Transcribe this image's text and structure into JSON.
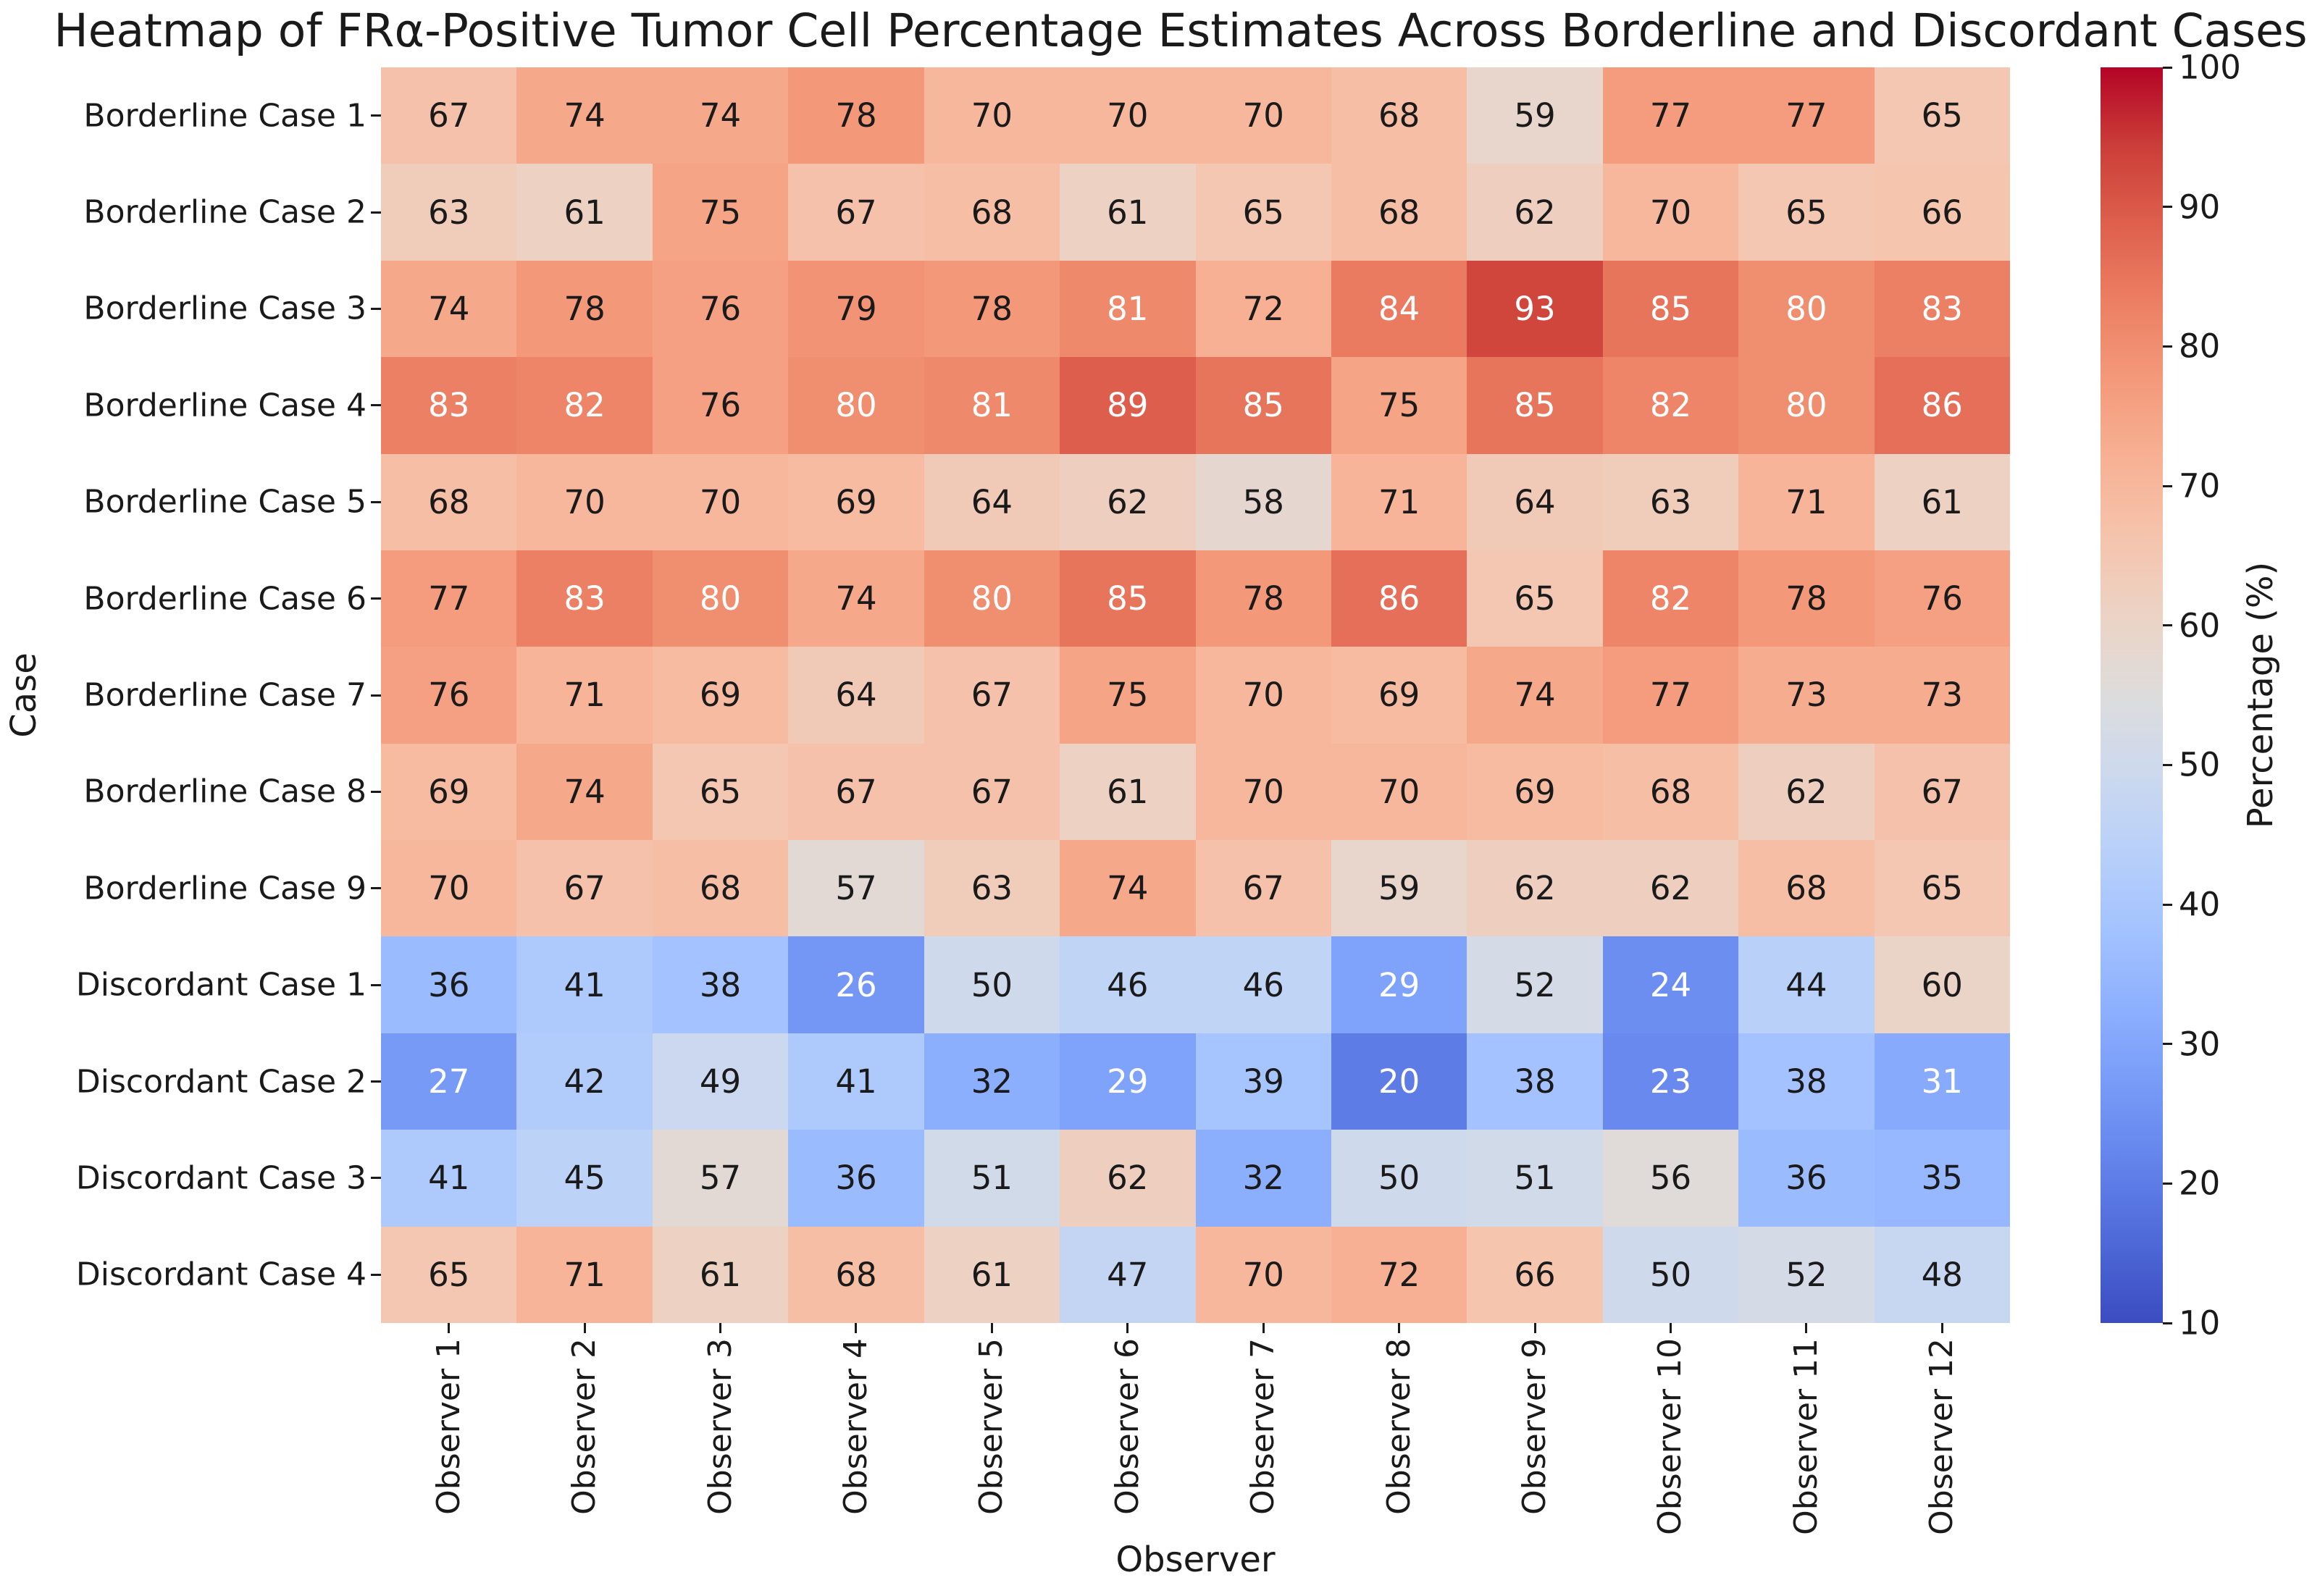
{
  "chart_data": {
    "type": "heatmap",
    "title": "Heatmap of FRα-Positive Tumor Cell Percentage Estimates Across Borderline and Discordant Cases",
    "xlabel": "Observer",
    "ylabel": "Case",
    "rows": [
      "Borderline Case 1",
      "Borderline Case 2",
      "Borderline Case 3",
      "Borderline Case 4",
      "Borderline Case 5",
      "Borderline Case 6",
      "Borderline Case 7",
      "Borderline Case 8",
      "Borderline Case 9",
      "Discordant Case 1",
      "Discordant Case 2",
      "Discordant Case 3",
      "Discordant Case 4"
    ],
    "columns": [
      "Observer 1",
      "Observer 2",
      "Observer 3",
      "Observer 4",
      "Observer 5",
      "Observer 6",
      "Observer 7",
      "Observer 8",
      "Observer 9",
      "Observer 10",
      "Observer 11",
      "Observer 12"
    ],
    "values": [
      [
        67,
        74,
        74,
        78,
        70,
        70,
        70,
        68,
        59,
        77,
        77,
        65
      ],
      [
        63,
        61,
        75,
        67,
        68,
        61,
        65,
        68,
        62,
        70,
        65,
        66
      ],
      [
        74,
        78,
        76,
        79,
        78,
        81,
        72,
        84,
        93,
        85,
        80,
        83
      ],
      [
        83,
        82,
        76,
        80,
        81,
        89,
        85,
        75,
        85,
        82,
        80,
        86
      ],
      [
        68,
        70,
        70,
        69,
        64,
        62,
        58,
        71,
        64,
        63,
        71,
        61
      ],
      [
        77,
        83,
        80,
        74,
        80,
        85,
        78,
        86,
        65,
        82,
        78,
        76
      ],
      [
        76,
        71,
        69,
        64,
        67,
        75,
        70,
        69,
        74,
        77,
        73,
        73
      ],
      [
        69,
        74,
        65,
        67,
        67,
        61,
        70,
        70,
        69,
        68,
        62,
        67
      ],
      [
        70,
        67,
        68,
        57,
        63,
        74,
        67,
        59,
        62,
        62,
        68,
        65
      ],
      [
        36,
        41,
        38,
        26,
        50,
        46,
        46,
        29,
        52,
        24,
        44,
        60
      ],
      [
        27,
        42,
        49,
        41,
        32,
        29,
        39,
        20,
        38,
        23,
        38,
        31
      ],
      [
        41,
        45,
        57,
        36,
        51,
        62,
        32,
        50,
        51,
        56,
        36,
        35
      ],
      [
        65,
        71,
        61,
        68,
        61,
        47,
        70,
        72,
        66,
        50,
        52,
        48
      ]
    ],
    "vmin": 10,
    "vmax": 100,
    "grid": false,
    "colorbar": {
      "label": "Percentage (%)",
      "ticks": [
        100,
        90,
        80,
        70,
        60,
        50,
        40,
        30,
        20,
        10
      ],
      "position": "right"
    },
    "colormap": {
      "name": "coolwarm",
      "anchors": [
        [
          0.0,
          [
            59,
            76,
            192
          ]
        ],
        [
          0.0625,
          [
            77,
            104,
            215
          ]
        ],
        [
          0.125,
          [
            98,
            130,
            234
          ]
        ],
        [
          0.1875,
          [
            119,
            154,
            247
          ]
        ],
        [
          0.25,
          [
            141,
            176,
            254
          ]
        ],
        [
          0.3125,
          [
            163,
            194,
            255
          ]
        ],
        [
          0.375,
          [
            184,
            208,
            249
          ]
        ],
        [
          0.4375,
          [
            204,
            217,
            238
          ]
        ],
        [
          0.5,
          [
            221,
            220,
            220
          ]
        ],
        [
          0.5625,
          [
            236,
            211,
            197
          ]
        ],
        [
          0.625,
          [
            245,
            196,
            173
          ]
        ],
        [
          0.6875,
          [
            247,
            177,
            148
          ]
        ],
        [
          0.75,
          [
            244,
            154,
            123
          ]
        ],
        [
          0.8125,
          [
            236,
            127,
            99
          ]
        ],
        [
          0.875,
          [
            222,
            96,
            77
          ]
        ],
        [
          0.9375,
          [
            203,
            62,
            56
          ]
        ],
        [
          1.0,
          [
            180,
            4,
            38
          ]
        ]
      ]
    },
    "annot": {
      "white_text_at_or_above": 80,
      "white_text_at_or_below": 31,
      "dark_text_color": "#1a1a1a",
      "light_text_color": "#ffffff"
    }
  }
}
